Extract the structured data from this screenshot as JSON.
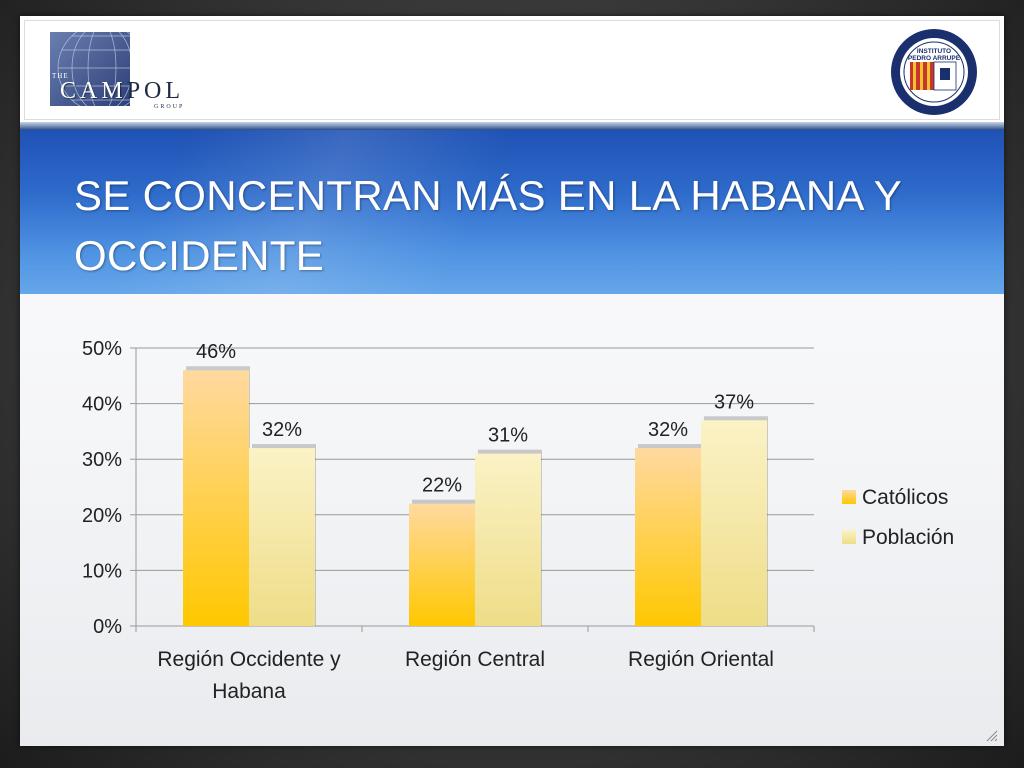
{
  "slide": {
    "title": "SE CONCENTRAN MÁS EN LA HABANA Y\nOCCIDENTE"
  },
  "logos": {
    "left": {
      "icon": "campol-globe-icon",
      "wordmark_light": "CAM",
      "wordmark_dark": "POL",
      "top_text": "THE",
      "bottom_text": "GROUP"
    },
    "right": {
      "icon": "instituto-pedro-arrupe-seal-icon",
      "line1": "INSTITUTO",
      "line2": "PEDRO ARRUPE"
    }
  },
  "colors": {
    "title_band": "#2f6ccc",
    "catolicos_top": "#ffd9a0",
    "catolicos_bottom": "#ffc800",
    "poblacion_top": "#fbf2c6",
    "poblacion_bottom": "#eedd88"
  },
  "chart_data": {
    "type": "bar",
    "categories": [
      "Región Occidente y Habana",
      "Región Central",
      "Región Oriental"
    ],
    "series": [
      {
        "name": "Católicos",
        "values": [
          46,
          22,
          32
        ],
        "labels": [
          "46%",
          "22%",
          "32%"
        ]
      },
      {
        "name": "Población",
        "values": [
          32,
          31,
          37
        ],
        "labels": [
          "32%",
          "31%",
          "37%"
        ]
      }
    ],
    "ylim": [
      0,
      50
    ],
    "yticks": [
      0,
      10,
      20,
      30,
      40,
      50
    ],
    "ytick_labels": [
      "0%",
      "10%",
      "20%",
      "30%",
      "40%",
      "50%"
    ],
    "grid": true,
    "legend_position": "right",
    "title": "",
    "xlabel": "",
    "ylabel": ""
  }
}
